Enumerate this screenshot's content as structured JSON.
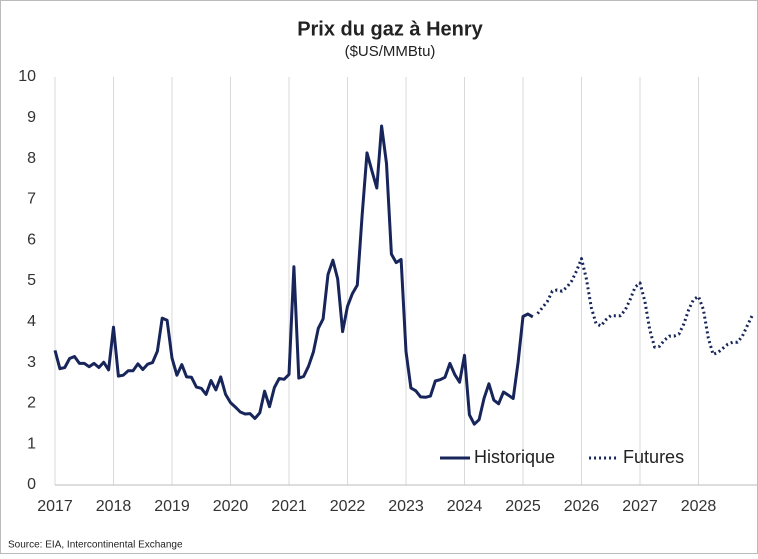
{
  "chart_data": {
    "type": "line",
    "title": "Prix du gaz à Henry",
    "subtitle": "($US/MMBtu)",
    "source": "Source: EIA, Intercontinental Exchange",
    "xlim": [
      2017,
      2029
    ],
    "xticks": [
      2017,
      2018,
      2019,
      2020,
      2021,
      2022,
      2023,
      2024,
      2025,
      2026,
      2027,
      2028
    ],
    "ylim": [
      0,
      10
    ],
    "yticks": [
      0,
      1,
      2,
      3,
      4,
      5,
      6,
      7,
      8,
      9,
      10
    ],
    "grid": "x",
    "legend": "lower right",
    "series": [
      {
        "name": "Historique",
        "color": "#17255a",
        "dash": "solid",
        "x": [
          2017,
          2017.083,
          2017.167,
          2017.25,
          2017.333,
          2017.417,
          2017.5,
          2017.583,
          2017.667,
          2017.75,
          2017.833,
          2017.917,
          2018,
          2018.083,
          2018.167,
          2018.25,
          2018.333,
          2018.417,
          2018.5,
          2018.583,
          2018.667,
          2018.75,
          2018.833,
          2018.917,
          2019,
          2019.083,
          2019.167,
          2019.25,
          2019.333,
          2019.417,
          2019.5,
          2019.583,
          2019.667,
          2019.75,
          2019.833,
          2019.917,
          2020,
          2020.083,
          2020.167,
          2020.25,
          2020.333,
          2020.417,
          2020.5,
          2020.583,
          2020.667,
          2020.75,
          2020.833,
          2020.917,
          2021,
          2021.083,
          2021.167,
          2021.25,
          2021.333,
          2021.417,
          2021.5,
          2021.583,
          2021.667,
          2021.75,
          2021.833,
          2021.917,
          2022,
          2022.083,
          2022.167,
          2022.25,
          2022.333,
          2022.417,
          2022.5,
          2022.583,
          2022.667,
          2022.75,
          2022.833,
          2022.917,
          2023,
          2023.083,
          2023.167,
          2023.25,
          2023.333,
          2023.417,
          2023.5,
          2023.583,
          2023.667,
          2023.75,
          2023.833,
          2023.917,
          2024,
          2024.083,
          2024.167,
          2024.25,
          2024.333,
          2024.417,
          2024.5,
          2024.583,
          2024.667,
          2024.75,
          2024.833,
          2024.917,
          2025,
          2025.083,
          2025.167
        ],
        "values": [
          3.3,
          2.85,
          2.88,
          3.1,
          3.15,
          2.98,
          2.98,
          2.9,
          2.98,
          2.88,
          3.01,
          2.82,
          3.87,
          2.67,
          2.69,
          2.8,
          2.8,
          2.97,
          2.83,
          2.96,
          3.0,
          3.28,
          4.09,
          4.04,
          3.11,
          2.69,
          2.95,
          2.65,
          2.64,
          2.4,
          2.37,
          2.22,
          2.56,
          2.33,
          2.65,
          2.22,
          2.02,
          1.91,
          1.79,
          1.74,
          1.75,
          1.63,
          1.77,
          2.3,
          1.92,
          2.39,
          2.61,
          2.59,
          2.71,
          5.35,
          2.62,
          2.66,
          2.91,
          3.26,
          3.84,
          4.07,
          5.16,
          5.51,
          5.05,
          3.76,
          4.38,
          4.69,
          4.9,
          6.6,
          8.14,
          7.7,
          7.28,
          8.8,
          7.88,
          5.66,
          5.45,
          5.53,
          3.27,
          2.38,
          2.31,
          2.16,
          2.15,
          2.18,
          2.55,
          2.58,
          2.64,
          2.98,
          2.71,
          2.52,
          3.18,
          1.72,
          1.49,
          1.6,
          2.12,
          2.48,
          2.08,
          1.99,
          2.28,
          2.2,
          2.12,
          3.01,
          4.13,
          4.19,
          4.12
        ]
      },
      {
        "name": "Futures",
        "color": "#17255a",
        "dash": "dotted",
        "x": [
          2025.25,
          2025.333,
          2025.417,
          2025.5,
          2025.583,
          2025.667,
          2025.75,
          2025.833,
          2025.917,
          2026,
          2026.083,
          2026.167,
          2026.25,
          2026.333,
          2026.417,
          2026.5,
          2026.583,
          2026.667,
          2026.75,
          2026.833,
          2026.917,
          2027,
          2027.083,
          2027.167,
          2027.25,
          2027.333,
          2027.417,
          2027.5,
          2027.583,
          2027.667,
          2027.75,
          2027.833,
          2027.917,
          2028,
          2028.083,
          2028.167,
          2028.25,
          2028.333,
          2028.417,
          2028.5,
          2028.583,
          2028.667,
          2028.75,
          2028.833,
          2028.917
        ],
        "values": [
          4.2,
          4.35,
          4.5,
          4.75,
          4.78,
          4.75,
          4.85,
          5.0,
          5.25,
          5.55,
          5.05,
          4.35,
          3.95,
          3.9,
          4.05,
          4.15,
          4.15,
          4.15,
          4.3,
          4.55,
          4.85,
          4.95,
          4.5,
          3.8,
          3.38,
          3.4,
          3.55,
          3.65,
          3.65,
          3.7,
          3.95,
          4.3,
          4.55,
          4.62,
          4.3,
          3.6,
          3.2,
          3.25,
          3.35,
          3.45,
          3.5,
          3.5,
          3.65,
          3.9,
          4.15
        ]
      }
    ]
  }
}
